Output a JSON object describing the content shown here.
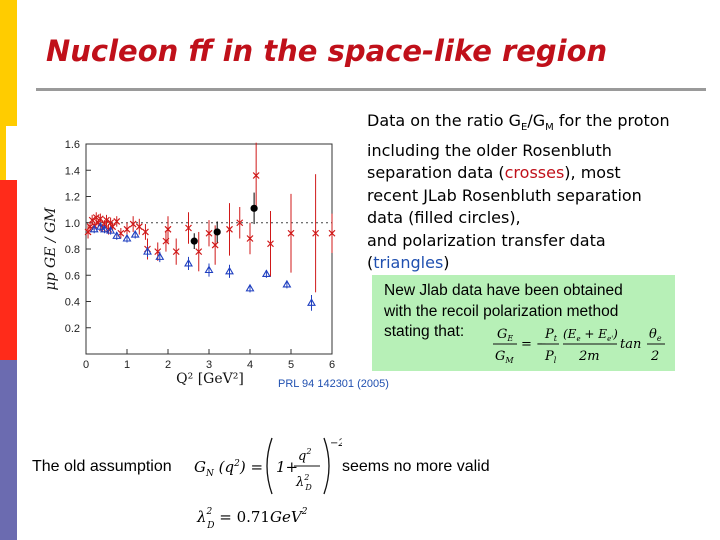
{
  "slide": {
    "title": "Nucleon ff in the space-like region"
  },
  "colors": {
    "title": "#c0101a",
    "sidebar_yellow": "#ffcc00",
    "sidebar_red": "#ff2b1a",
    "sidebar_purple": "#6b6bb0",
    "box_green": "#b7f0b7",
    "crosses": "#d01818",
    "triangles": "#2040c0",
    "circles": "#000000"
  },
  "description": {
    "line1_a": "Data on the ratio G",
    "line1_sub_e": "E",
    "line1_slash": "/G",
    "line1_sub_m": "M",
    "line1_b": " for the proton",
    "line2": "including the older Rosenbluth",
    "line3_a": "separation data (",
    "line3_red": "crosses",
    "line3_b": "), most",
    "line4": "recent JLab Rosenbluth separation",
    "line5": "data (filled circles),",
    "line6": "and polarization transfer data",
    "line7_a": "(",
    "line7_blue": "triangles",
    "line7_b": ")"
  },
  "box": {
    "line1": "New Jlab data have been obtained",
    "line2": "with the recoil polarization method",
    "line3": "stating that:",
    "formula": "G_E / G_M = − (P_t / P_l) · (E_e + E_e') / 2m · tan(θ_e / 2)"
  },
  "reference": "PRL 94 142301 (2005)",
  "bottom": {
    "left_text": "The old  assumption",
    "right_text": "seems no more valid",
    "dipole_formula": "G_N(q²) = (1 + q²/λ_D²)^−2",
    "lambda_formula": "λ_D² = 0.71 GeV²"
  },
  "chart_data": {
    "type": "scatter",
    "xlim": [
      0,
      6
    ],
    "ylim": [
      0,
      1.6
    ],
    "xticks": [
      0,
      1,
      2,
      3,
      4,
      5,
      6
    ],
    "yticks": [
      0.2,
      0.4,
      0.6,
      0.8,
      1.0,
      1.2,
      1.4,
      1.6
    ],
    "xlabel": "Q² [GeV²]",
    "ylabel": "μp GE / GM",
    "reference_line": 1.0,
    "series": [
      {
        "marker": "cross",
        "color": "#d01818",
        "points": [
          {
            "x": 0.05,
            "y": 0.93,
            "e": 0.05
          },
          {
            "x": 0.1,
            "y": 0.97,
            "e": 0.04
          },
          {
            "x": 0.15,
            "y": 1.02,
            "e": 0.04
          },
          {
            "x": 0.2,
            "y": 0.98,
            "e": 0.03
          },
          {
            "x": 0.25,
            "y": 1.04,
            "e": 0.04
          },
          {
            "x": 0.3,
            "y": 1.0,
            "e": 0.03
          },
          {
            "x": 0.35,
            "y": 1.03,
            "e": 0.04
          },
          {
            "x": 0.4,
            "y": 0.96,
            "e": 0.03
          },
          {
            "x": 0.45,
            "y": 0.99,
            "e": 0.03
          },
          {
            "x": 0.5,
            "y": 1.02,
            "e": 0.04
          },
          {
            "x": 0.55,
            "y": 0.95,
            "e": 0.04
          },
          {
            "x": 0.6,
            "y": 1.0,
            "e": 0.04
          },
          {
            "x": 0.65,
            "y": 0.97,
            "e": 0.03
          },
          {
            "x": 0.75,
            "y": 1.01,
            "e": 0.04
          },
          {
            "x": 0.85,
            "y": 0.92,
            "e": 0.04
          },
          {
            "x": 1.0,
            "y": 0.95,
            "e": 0.05
          },
          {
            "x": 1.15,
            "y": 0.99,
            "e": 0.06
          },
          {
            "x": 1.3,
            "y": 0.97,
            "e": 0.06
          },
          {
            "x": 1.45,
            "y": 0.93,
            "e": 0.06
          },
          {
            "x": 1.5,
            "y": 0.8,
            "e": 0.08
          },
          {
            "x": 1.75,
            "y": 0.78,
            "e": 0.07
          },
          {
            "x": 1.95,
            "y": 0.86,
            "e": 0.08
          },
          {
            "x": 2.0,
            "y": 0.95,
            "e": 0.1
          },
          {
            "x": 2.2,
            "y": 0.78,
            "e": 0.1
          },
          {
            "x": 2.5,
            "y": 0.96,
            "e": 0.12
          },
          {
            "x": 2.75,
            "y": 0.78,
            "e": 0.15
          },
          {
            "x": 3.0,
            "y": 0.92,
            "e": 0.1
          },
          {
            "x": 3.15,
            "y": 0.83,
            "e": 0.15
          },
          {
            "x": 3.5,
            "y": 0.95,
            "e": 0.2
          },
          {
            "x": 3.75,
            "y": 1.0,
            "e": 0.12
          },
          {
            "x": 4.0,
            "y": 0.88,
            "e": 0.12
          },
          {
            "x": 4.15,
            "y": 1.36,
            "e": 0.25
          },
          {
            "x": 4.5,
            "y": 0.84,
            "e": 0.25
          },
          {
            "x": 5.0,
            "y": 0.92,
            "e": 0.3
          },
          {
            "x": 5.6,
            "y": 0.92,
            "e": 0.45
          },
          {
            "x": 6.0,
            "y": 0.92,
            "e": 0.15
          }
        ]
      },
      {
        "marker": "triangle",
        "color": "#2040c0",
        "points": [
          {
            "x": 0.2,
            "y": 0.95,
            "e": 0.03
          },
          {
            "x": 0.35,
            "y": 0.97,
            "e": 0.03
          },
          {
            "x": 0.45,
            "y": 0.95,
            "e": 0.03
          },
          {
            "x": 0.6,
            "y": 0.94,
            "e": 0.03
          },
          {
            "x": 0.75,
            "y": 0.9,
            "e": 0.03
          },
          {
            "x": 1.0,
            "y": 0.88,
            "e": 0.03
          },
          {
            "x": 1.2,
            "y": 0.91,
            "e": 0.03
          },
          {
            "x": 1.5,
            "y": 0.78,
            "e": 0.04
          },
          {
            "x": 1.8,
            "y": 0.74,
            "e": 0.04
          },
          {
            "x": 2.5,
            "y": 0.69,
            "e": 0.05
          },
          {
            "x": 3.0,
            "y": 0.64,
            "e": 0.05
          },
          {
            "x": 3.5,
            "y": 0.63,
            "e": 0.05
          },
          {
            "x": 4.0,
            "y": 0.5,
            "e": 0.03
          },
          {
            "x": 4.4,
            "y": 0.61,
            "e": 0.03
          },
          {
            "x": 4.9,
            "y": 0.53,
            "e": 0.03
          },
          {
            "x": 5.5,
            "y": 0.39,
            "e": 0.06
          }
        ]
      },
      {
        "marker": "circle",
        "color": "#000000",
        "points": [
          {
            "x": 2.64,
            "y": 0.86,
            "e": 0.06
          },
          {
            "x": 3.2,
            "y": 0.93,
            "e": 0.08
          },
          {
            "x": 4.1,
            "y": 1.11,
            "e": 0.12
          }
        ]
      }
    ]
  }
}
